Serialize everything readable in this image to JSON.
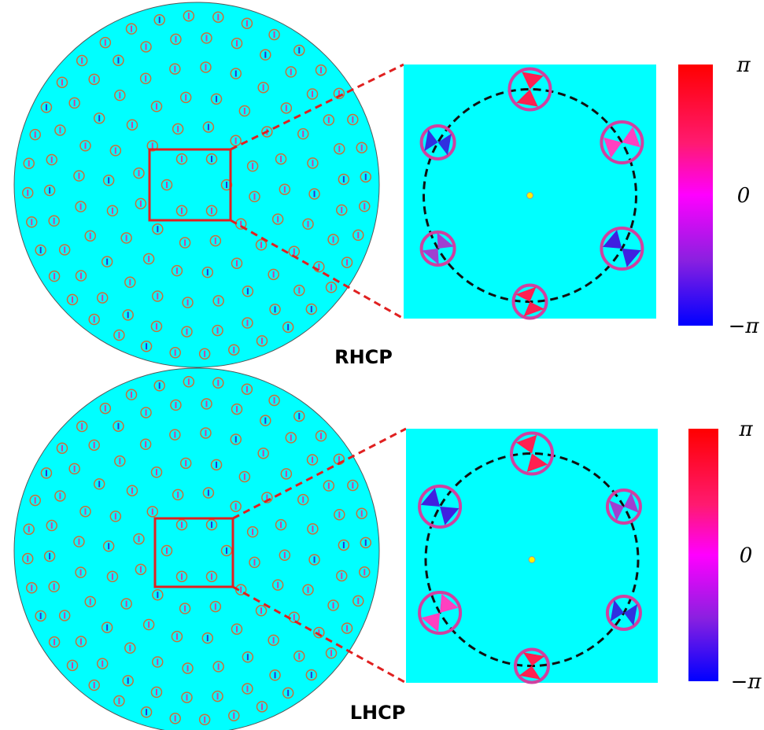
{
  "panels": [
    {
      "label": "RHCP",
      "colorbar": {
        "ticks": [
          "π",
          "0",
          "−π"
        ]
      }
    },
    {
      "label": "LHCP",
      "colorbar": {
        "ticks": [
          "π",
          "0",
          "−π"
        ]
      }
    }
  ]
}
